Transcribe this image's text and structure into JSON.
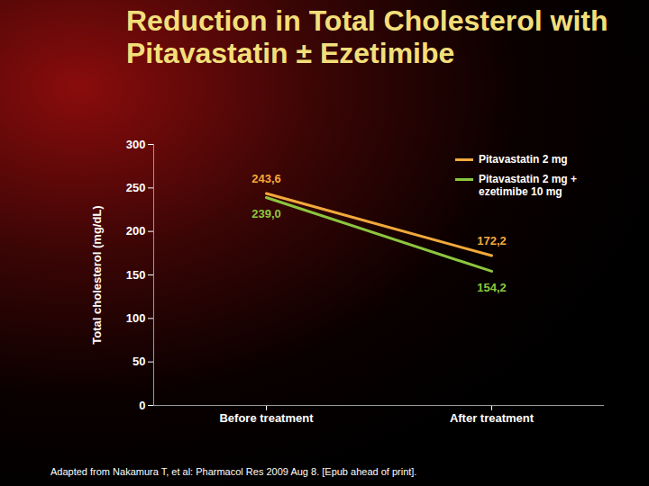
{
  "chart_data": {
    "type": "line",
    "title": "Reduction in Total Cholesterol with Pitavastatin ± Ezetimibe",
    "ylabel": "Total cholesterol (mg/dL)",
    "categories": [
      "Before treatment",
      "After treatment"
    ],
    "series": [
      {
        "name": "Pitavastatin 2 mg",
        "color": "#f2a93b",
        "values": [
          243.6,
          172.2
        ],
        "value_labels": [
          "243,6",
          "172,2"
        ]
      },
      {
        "name": "Pitavastatin 2 mg + ezetimibe 10 mg",
        "color": "#8cc63f",
        "values": [
          239.0,
          154.2
        ],
        "value_labels": [
          "239,0",
          "154,2"
        ]
      }
    ],
    "ylim": [
      0,
      300
    ],
    "yticks": [
      0,
      50,
      100,
      150,
      200,
      250,
      300
    ],
    "grid": false,
    "legend": "top-right",
    "data_labels": true,
    "caption": "Adapted from Nakamura T, et al: Pharmacol Res 2009 Aug 8. [Epub ahead of print]."
  }
}
